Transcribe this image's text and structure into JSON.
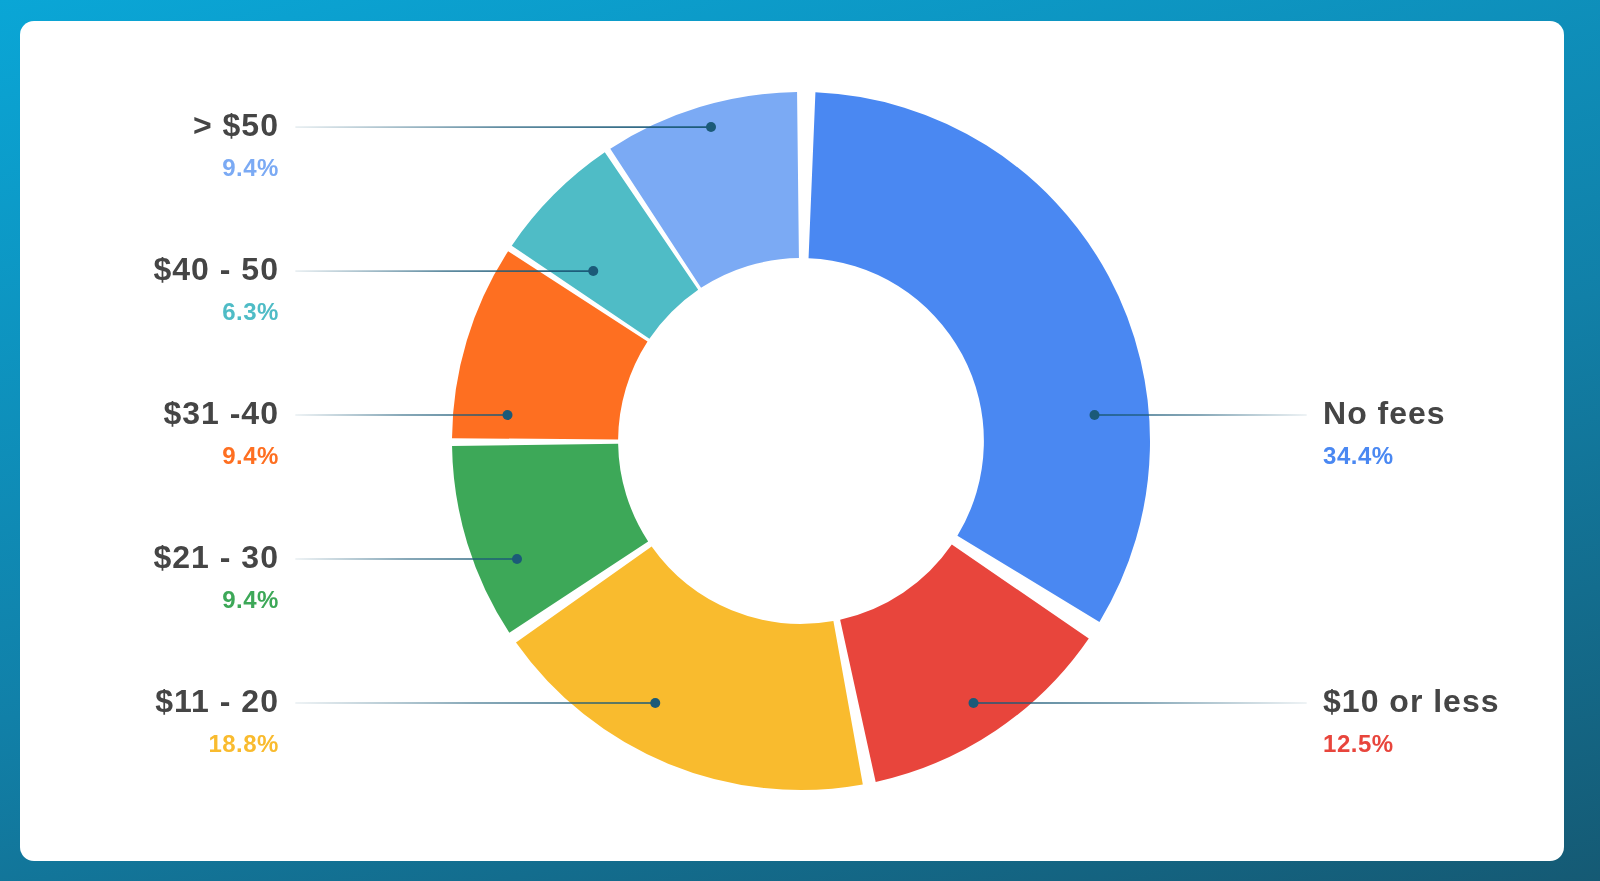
{
  "chart_data": {
    "type": "donut",
    "categories": [
      "No fees",
      "$10 or less",
      "$11 - 20",
      "$21 - 30",
      "$31 -40",
      "$40 - 50",
      "> $50"
    ],
    "values": [
      34.4,
      12.5,
      18.8,
      9.4,
      9.4,
      6.3,
      9.4
    ],
    "colors": [
      "#4a88f2",
      "#e8453c",
      "#f9bb2e",
      "#3da858",
      "#fe6f21",
      "#4fbcc6",
      "#7baaf4"
    ],
    "value_labels": [
      "34.4%",
      "12.5%",
      "18.8%",
      "9.4%",
      "9.4%",
      "6.3%",
      "9.4%"
    ]
  }
}
